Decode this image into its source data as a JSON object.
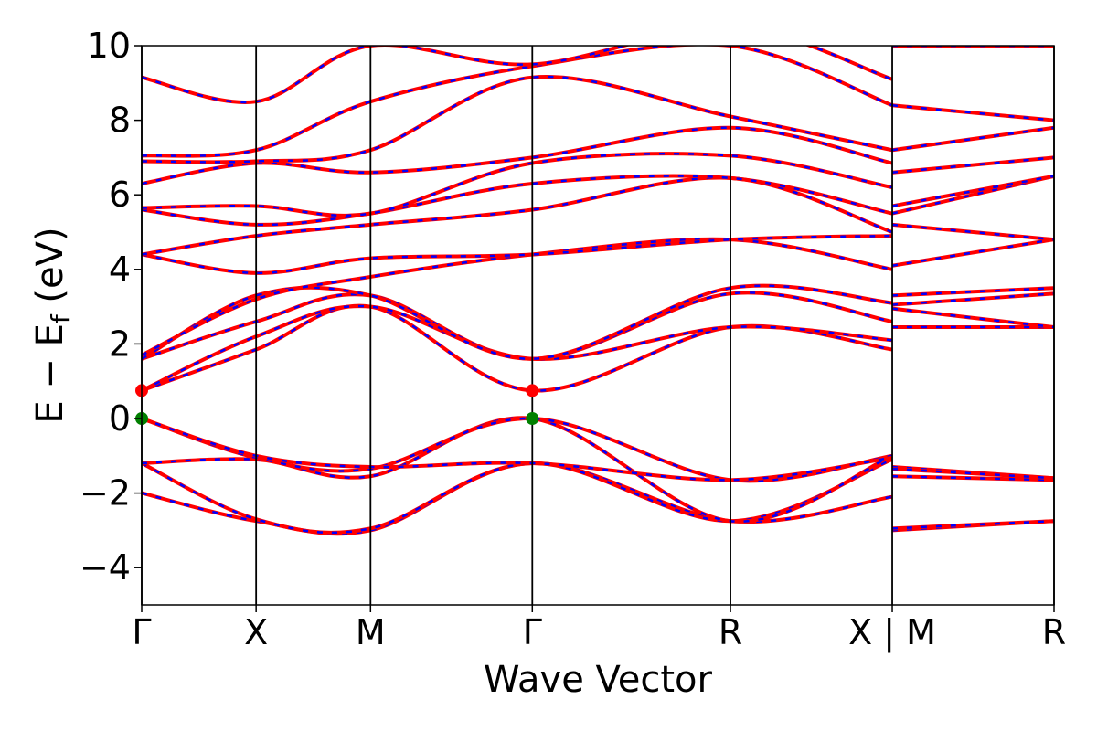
{
  "chart_data": {
    "type": "line",
    "xlabel": "Wave Vector",
    "ylabel_parts": {
      "main": "E − E",
      "sub": "f",
      "unit": " (eV)"
    },
    "ylim": [
      -5,
      10
    ],
    "yticks": [
      10,
      8,
      6,
      4,
      2,
      0,
      -2,
      -4
    ],
    "ytick_labels": [
      "10",
      "8",
      "6",
      "4",
      "2",
      "0",
      "−2",
      "−4"
    ],
    "kpoints": [
      {
        "label": "Γ",
        "x": 0.0
      },
      {
        "label": "X",
        "x": 0.5
      },
      {
        "label": "M",
        "x": 1.0
      },
      {
        "label": "Γ",
        "x": 1.707
      },
      {
        "label": "R",
        "x": 2.573
      },
      {
        "label": "X | M",
        "x": 3.28
      },
      {
        "label": "R",
        "x": 3.987
      }
    ],
    "x_range": [
      0,
      3.987
    ],
    "grid": false,
    "colors": {
      "spin_up": "#ff0000",
      "spin_down": "#0000ff",
      "vbm": "#008000",
      "cbm": "#ff0000"
    },
    "band_edges": {
      "vbm": 0.0,
      "cbm": 0.75
    },
    "bands": [
      [
        [
          0,
          -2.0
        ],
        [
          0.5,
          -2.75
        ],
        [
          1.0,
          -3.0
        ],
        [
          1.707,
          -1.2
        ],
        [
          2.573,
          -2.75
        ],
        [
          3.28,
          -2.1
        ],
        [
          3.28,
          -3.0
        ],
        [
          3.987,
          -2.75
        ]
      ],
      [
        [
          0,
          -1.2
        ],
        [
          0.5,
          -2.7
        ],
        [
          1.0,
          -2.95
        ],
        [
          1.707,
          -1.2
        ],
        [
          2.573,
          -2.75
        ],
        [
          3.28,
          -1.1
        ],
        [
          3.28,
          -2.95
        ],
        [
          3.987,
          -2.75
        ]
      ],
      [
        [
          0,
          -1.2
        ],
        [
          0.5,
          -1.1
        ],
        [
          1.0,
          -1.55
        ],
        [
          1.707,
          0.0
        ],
        [
          2.573,
          -2.75
        ],
        [
          3.28,
          -1.0
        ],
        [
          3.28,
          -1.55
        ],
        [
          3.987,
          -1.65
        ]
      ],
      [
        [
          0,
          0.0
        ],
        [
          0.5,
          -1.05
        ],
        [
          1.0,
          -1.35
        ],
        [
          1.707,
          0.0
        ],
        [
          2.573,
          -1.65
        ],
        [
          3.28,
          -1.0
        ],
        [
          3.28,
          -1.3
        ],
        [
          3.987,
          -1.6
        ]
      ],
      [
        [
          0,
          0.0
        ],
        [
          0.5,
          -1.0
        ],
        [
          1.0,
          -1.3
        ],
        [
          1.707,
          -1.2
        ],
        [
          2.573,
          -1.65
        ],
        [
          3.28,
          -1.05
        ],
        [
          3.28,
          -1.35
        ],
        [
          3.987,
          -1.6
        ]
      ],
      [
        [
          0,
          0.75
        ],
        [
          0.5,
          1.85
        ],
        [
          1.0,
          3.0
        ],
        [
          1.707,
          0.75
        ],
        [
          2.573,
          2.45
        ],
        [
          3.28,
          1.85
        ],
        [
          3.28,
          2.45
        ],
        [
          3.987,
          2.45
        ]
      ],
      [
        [
          0,
          0.75
        ],
        [
          0.5,
          2.2
        ],
        [
          1.0,
          3.0
        ],
        [
          1.707,
          1.6
        ],
        [
          2.573,
          2.45
        ],
        [
          3.28,
          2.1
        ],
        [
          3.28,
          2.95
        ],
        [
          3.987,
          2.45
        ]
      ],
      [
        [
          0,
          1.6
        ],
        [
          0.5,
          2.6
        ],
        [
          1.0,
          3.3
        ],
        [
          1.707,
          1.6
        ],
        [
          2.573,
          3.35
        ],
        [
          3.28,
          2.6
        ],
        [
          3.28,
          3.05
        ],
        [
          3.987,
          3.35
        ]
      ],
      [
        [
          0,
          1.6
        ],
        [
          0.5,
          3.3
        ],
        [
          1.0,
          3.3
        ],
        [
          1.707,
          1.6
        ],
        [
          2.573,
          3.5
        ],
        [
          3.28,
          3.1
        ],
        [
          3.28,
          3.3
        ],
        [
          3.987,
          3.5
        ]
      ],
      [
        [
          0,
          1.7
        ],
        [
          0.5,
          3.2
        ],
        [
          1.0,
          3.8
        ],
        [
          1.707,
          4.4
        ],
        [
          2.573,
          4.8
        ],
        [
          3.28,
          4.0
        ],
        [
          3.28,
          4.1
        ],
        [
          3.987,
          4.8
        ]
      ],
      [
        [
          0,
          4.4
        ],
        [
          0.5,
          3.9
        ],
        [
          1.0,
          4.3
        ],
        [
          1.707,
          4.4
        ],
        [
          2.573,
          4.8
        ],
        [
          3.28,
          4.9
        ],
        [
          3.28,
          5.2
        ],
        [
          3.987,
          4.8
        ]
      ],
      [
        [
          0,
          4.4
        ],
        [
          0.5,
          4.9
        ],
        [
          1.0,
          5.2
        ],
        [
          1.707,
          5.6
        ],
        [
          2.573,
          6.45
        ],
        [
          3.28,
          5.0
        ],
        [
          3.28,
          5.5
        ],
        [
          3.987,
          6.5
        ]
      ],
      [
        [
          0,
          5.6
        ],
        [
          0.5,
          5.2
        ],
        [
          1.0,
          5.5
        ],
        [
          1.707,
          6.3
        ],
        [
          2.573,
          6.45
        ],
        [
          3.28,
          5.5
        ],
        [
          3.28,
          5.7
        ],
        [
          3.987,
          6.5
        ]
      ],
      [
        [
          0,
          5.65
        ],
        [
          0.5,
          5.7
        ],
        [
          1.0,
          5.5
        ],
        [
          1.707,
          6.85
        ],
        [
          2.573,
          7.05
        ],
        [
          3.28,
          6.2
        ],
        [
          3.28,
          6.6
        ],
        [
          3.987,
          7.0
        ]
      ],
      [
        [
          0,
          6.3
        ],
        [
          0.5,
          6.85
        ],
        [
          1.0,
          6.6
        ],
        [
          1.707,
          7.0
        ],
        [
          2.573,
          7.8
        ],
        [
          3.28,
          6.85
        ],
        [
          3.28,
          7.2
        ],
        [
          3.987,
          7.8
        ]
      ],
      [
        [
          0,
          6.9
        ],
        [
          0.5,
          6.9
        ],
        [
          1.0,
          7.2
        ],
        [
          1.707,
          9.15
        ],
        [
          2.573,
          8.1
        ],
        [
          3.28,
          7.2
        ],
        [
          3.28,
          8.4
        ],
        [
          3.987,
          8.0
        ]
      ],
      [
        [
          0,
          7.05
        ],
        [
          0.5,
          7.2
        ],
        [
          1.0,
          8.5
        ],
        [
          1.707,
          9.45
        ],
        [
          2.573,
          10.0
        ],
        [
          3.28,
          8.4
        ],
        [
          3.28,
          10.0
        ],
        [
          3.987,
          10.0
        ]
      ],
      [
        [
          0,
          9.15
        ],
        [
          0.5,
          8.5
        ],
        [
          1.0,
          10.0
        ],
        [
          1.707,
          9.5
        ],
        [
          2.573,
          10.5
        ],
        [
          3.28,
          9.1
        ],
        [
          3.28,
          10.5
        ],
        [
          3.987,
          10.5
        ]
      ]
    ]
  }
}
